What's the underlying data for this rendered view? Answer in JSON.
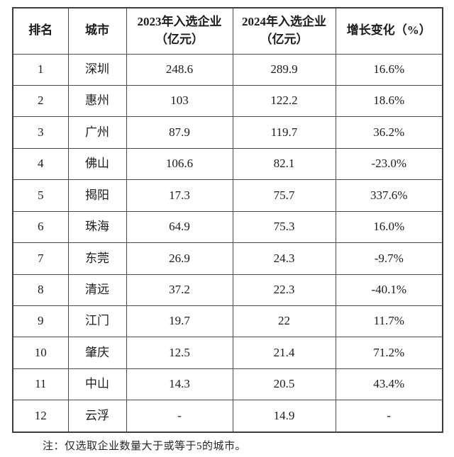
{
  "chart_data": {
    "type": "table",
    "title": "",
    "columns": [
      "排名",
      "城市",
      "2023年入选企业（亿元）",
      "2024年入选企业（亿元）",
      "增长变化（%）"
    ],
    "rows": [
      [
        "1",
        "深圳",
        "248.6",
        "289.9",
        "16.6%"
      ],
      [
        "2",
        "惠州",
        "103",
        "122.2",
        "18.6%"
      ],
      [
        "3",
        "广州",
        "87.9",
        "119.7",
        "36.2%"
      ],
      [
        "4",
        "佛山",
        "106.6",
        "82.1",
        "-23.0%"
      ],
      [
        "5",
        "揭阳",
        "17.3",
        "75.7",
        "337.6%"
      ],
      [
        "6",
        "珠海",
        "64.9",
        "75.3",
        "16.0%"
      ],
      [
        "7",
        "东莞",
        "26.9",
        "24.3",
        "-9.7%"
      ],
      [
        "8",
        "清远",
        "37.2",
        "22.3",
        "-40.1%"
      ],
      [
        "9",
        "江门",
        "19.7",
        "22",
        "11.7%"
      ],
      [
        "10",
        "肇庆",
        "12.5",
        "21.4",
        "71.2%"
      ],
      [
        "11",
        "中山",
        "14.3",
        "20.5",
        "43.4%"
      ],
      [
        "12",
        "云浮",
        "-",
        "14.9",
        "-"
      ]
    ],
    "footnote": "注：仅选取企业数量大于或等于5的城市。",
    "colors": {
      "border": "#4a4a4a",
      "text": "#1c1c1c",
      "background": "#ffffff"
    }
  }
}
